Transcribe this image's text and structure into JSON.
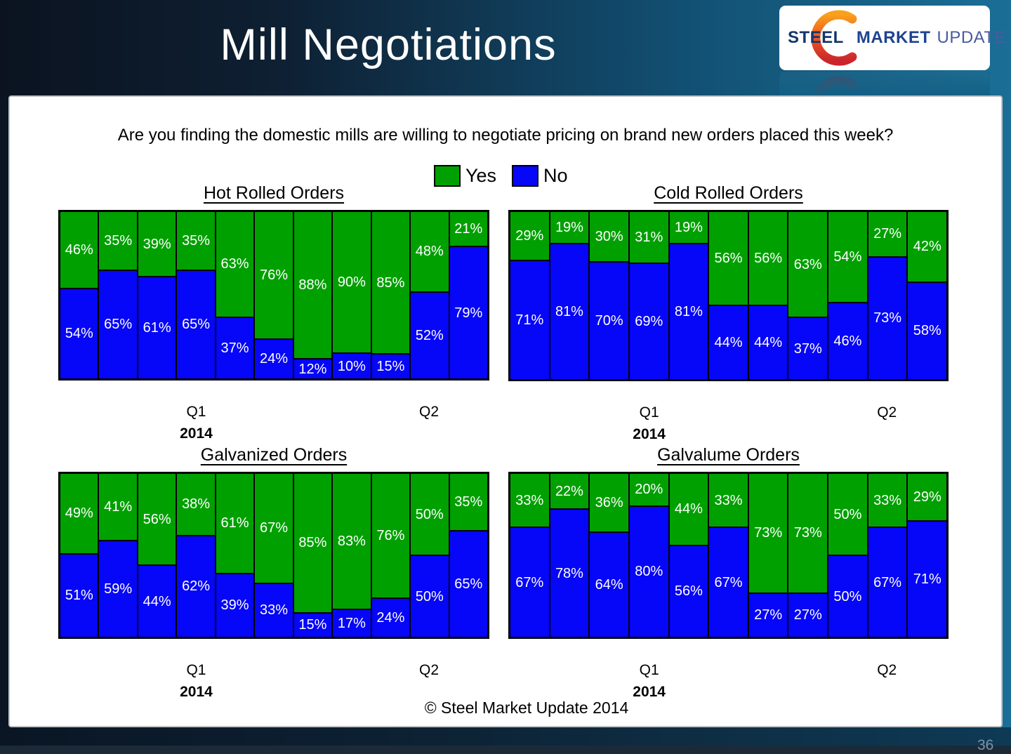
{
  "header": {
    "title": "Mill Negotiations",
    "logo": {
      "steel": "STEEL",
      "market": "MARKET",
      "update": "UPDATE"
    }
  },
  "question": "Are you finding the domestic mills are willing to negotiate pricing on brand new orders placed this week?",
  "legend": {
    "yes_label": "Yes",
    "no_label": "No",
    "yes_color": "#00A000",
    "no_color": "#0606F8"
  },
  "axis": {
    "q1": "Q1",
    "q2": "Q2",
    "year": "2014"
  },
  "footer": {
    "copyright": "© Steel Market Update 2014",
    "page_number": "36"
  },
  "chart_data": [
    {
      "id": "hot_rolled",
      "type": "bar",
      "stacked": true,
      "title": "Hot Rolled Orders",
      "unit": "%",
      "ylim": [
        0,
        100
      ],
      "x_axis": {
        "labels": [
          "Q1",
          "Q2"
        ],
        "year": "2014"
      },
      "series": [
        {
          "name": "Yes",
          "values": [
            46,
            35,
            39,
            35,
            63,
            76,
            88,
            90,
            85,
            48,
            21
          ]
        },
        {
          "name": "No",
          "values": [
            54,
            65,
            61,
            65,
            37,
            24,
            12,
            10,
            15,
            52,
            79
          ]
        }
      ]
    },
    {
      "id": "cold_rolled",
      "type": "bar",
      "stacked": true,
      "title": "Cold Rolled Orders",
      "unit": "%",
      "ylim": [
        0,
        100
      ],
      "x_axis": {
        "labels": [
          "Q1",
          "Q2"
        ],
        "year": "2014"
      },
      "series": [
        {
          "name": "Yes",
          "values": [
            29,
            19,
            30,
            31,
            19,
            56,
            56,
            63,
            54,
            27,
            42
          ]
        },
        {
          "name": "No",
          "values": [
            71,
            81,
            70,
            69,
            81,
            44,
            44,
            37,
            46,
            73,
            58
          ]
        }
      ]
    },
    {
      "id": "galvanized",
      "type": "bar",
      "stacked": true,
      "title": "Galvanized Orders",
      "unit": "%",
      "ylim": [
        0,
        100
      ],
      "x_axis": {
        "labels": [
          "Q1",
          "Q2"
        ],
        "year": "2014"
      },
      "series": [
        {
          "name": "Yes",
          "values": [
            49,
            41,
            56,
            38,
            61,
            67,
            85,
            83,
            76,
            50,
            35
          ]
        },
        {
          "name": "No",
          "values": [
            51,
            59,
            44,
            62,
            39,
            33,
            15,
            17,
            24,
            50,
            65
          ]
        }
      ]
    },
    {
      "id": "galvalume",
      "type": "bar",
      "stacked": true,
      "title": "Galvalume Orders",
      "unit": "%",
      "ylim": [
        0,
        100
      ],
      "x_axis": {
        "labels": [
          "Q1",
          "Q2"
        ],
        "year": "2014"
      },
      "series": [
        {
          "name": "Yes",
          "values": [
            33,
            22,
            36,
            20,
            44,
            33,
            73,
            73,
            50,
            33,
            29
          ]
        },
        {
          "name": "No",
          "values": [
            67,
            78,
            64,
            80,
            56,
            67,
            27,
            27,
            50,
            67,
            71
          ]
        }
      ]
    }
  ]
}
